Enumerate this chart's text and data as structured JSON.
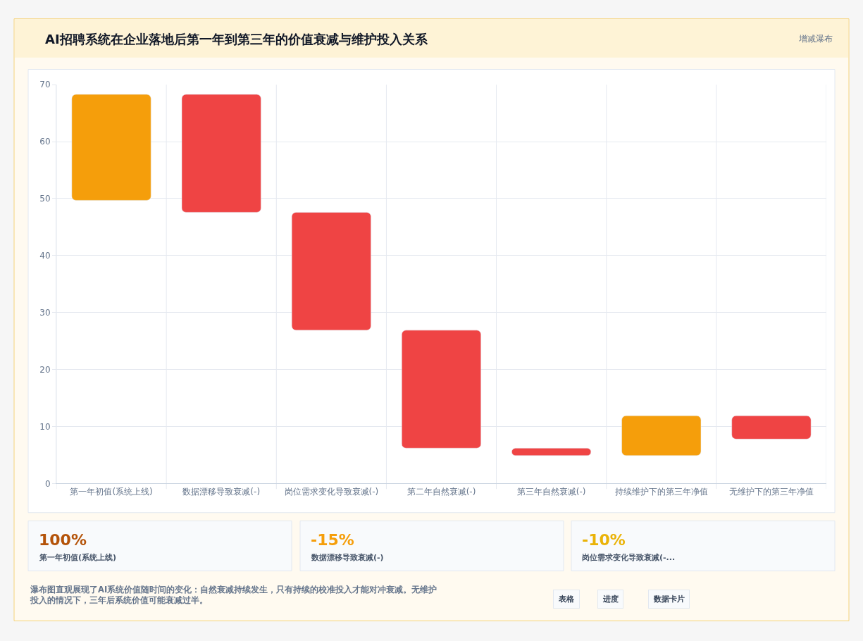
{
  "chart_data": [
    {
      "type": "bar",
      "title": "AI招聘系统在企业落地后第一年到第三年的价值衰减与维护投入关系",
      "subtitle": "增减瀑布",
      "categories": [
        "第一年初值(系统上线)",
        "数据漂移导致衰减(-)",
        "岗位需求变化导致衰减(-)",
        "第二年自然衰减(-)",
        "第三年自然衰减(-)",
        "持续维护下的第三年净值",
        "无维护下的第三年净值"
      ],
      "values": [
        18.6,
        20.7,
        20.7,
        20.7,
        1.3,
        7.0,
        4.1
      ],
      "base": [
        49.7,
        47.6,
        26.9,
        6.2,
        4.9,
        4.9,
        7.8
      ],
      "colors": [
        "#f59e0b",
        "#ef4444",
        "#ef4444",
        "#ef4444",
        "#ef4444",
        "#f59e0b",
        "#ef4444"
      ],
      "ylim": [
        0,
        70
      ],
      "yticks": [
        0,
        10,
        20,
        30,
        40,
        50,
        60,
        70
      ],
      "grid": true
    },
    {
      "type": "other",
      "annotations": [
        "100%",
        "第一年初值(系统上线)",
        "-15%",
        "数据漂移导致衰减(-)",
        "-10%",
        "岗位需求变化导致衰减(-...",
        "瀑布图直观展现了AI系统价值随时间的变化：自然衰减持续发生，只有持续的校准投入才能对冲衰减。无维护投入的情况下，三年后系统价值可能衰减过半。",
        "表格",
        "进度",
        "数据卡片"
      ]
    }
  ]
}
